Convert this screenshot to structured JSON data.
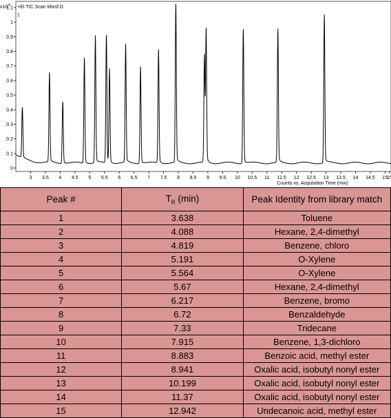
{
  "chart_data": {
    "type": "line",
    "title": "+EI TIC Scan Mixsf.D",
    "y_exponent_label": "x10",
    "y_exponent_power": "9",
    "xlabel": "Counts vs. Acquisition Time (min)",
    "ylabel": "",
    "xlim": [
      2.5,
      15.2
    ],
    "ylim": [
      0,
      1.15
    ],
    "x_ticks": [
      "3",
      "3.5",
      "4",
      "4.5",
      "5",
      "5.5",
      "6",
      "6.5",
      "7",
      "7.5",
      "8",
      "8.5",
      "9",
      "9.5",
      "10",
      "10.5",
      "11",
      "11.5",
      "12",
      "12.5",
      "13",
      "13.5",
      "14",
      "14.5",
      "15",
      "15"
    ],
    "y_ticks": [
      "0",
      "0.1",
      "0.2",
      "0.3",
      "0.4",
      "0.5",
      "0.6",
      "0.7",
      "0.8",
      "0.9",
      "1",
      "1.1"
    ],
    "cursor_label": "1",
    "peaks": [
      {
        "t": 2.72,
        "h": 0.34
      },
      {
        "t": 3.638,
        "h": 0.59
      },
      {
        "t": 4.088,
        "h": 0.42
      },
      {
        "t": 4.819,
        "h": 0.7
      },
      {
        "t": 5.191,
        "h": 0.84
      },
      {
        "t": 5.564,
        "h": 0.86
      },
      {
        "t": 5.67,
        "h": 0.62
      },
      {
        "t": 6.217,
        "h": 0.78
      },
      {
        "t": 6.72,
        "h": 0.64
      },
      {
        "t": 7.33,
        "h": 0.75
      },
      {
        "t": 7.915,
        "h": 1.05
      },
      {
        "t": 8.883,
        "h": 0.71
      },
      {
        "t": 8.941,
        "h": 0.88
      },
      {
        "t": 10.199,
        "h": 0.91
      },
      {
        "t": 11.37,
        "h": 0.88
      },
      {
        "t": 12.942,
        "h": 0.98
      }
    ]
  },
  "table": {
    "headers": {
      "peak": "Peak #",
      "tr_main": "T",
      "tr_sub": "R",
      "tr_unit": " (min)",
      "identity": "Peak Identity from library match"
    },
    "rows": [
      {
        "peak": "1",
        "tr": "3.638",
        "identity": "Toluene"
      },
      {
        "peak": "2",
        "tr": "4.088",
        "identity": "Hexane, 2,4-dimethyl"
      },
      {
        "peak": "3",
        "tr": "4.819",
        "identity": "Benzene, chloro"
      },
      {
        "peak": "4",
        "tr": "5.191",
        "identity": "O-Xylene"
      },
      {
        "peak": "5",
        "tr": "5.564",
        "identity": "O-Xylene"
      },
      {
        "peak": "6",
        "tr": "5.67",
        "identity": "Hexane, 2,4-dimethyl"
      },
      {
        "peak": "7",
        "tr": "6.217",
        "identity": "Benzene, bromo"
      },
      {
        "peak": "8",
        "tr": "6.72",
        "identity": "Benzaldehyde"
      },
      {
        "peak": "9",
        "tr": "7.33",
        "identity": "Tridecane"
      },
      {
        "peak": "10",
        "tr": "7.915",
        "identity": "Benzene, 1,3-dichloro"
      },
      {
        "peak": "11",
        "tr": "8.883",
        "identity": "Benzoic acid, methyl ester"
      },
      {
        "peak": "12",
        "tr": "8.941",
        "identity": "Oxalic acid, isobutyl nonyl ester"
      },
      {
        "peak": "13",
        "tr": "10.199",
        "identity": "Oxalic acid, isobutyl nonyl ester"
      },
      {
        "peak": "14",
        "tr": "11.37",
        "identity": "Oxalic acid, isobutyl nonyl ester"
      },
      {
        "peak": "15",
        "tr": "12.942",
        "identity": "Undecanoic acid, methyl ester"
      }
    ]
  }
}
